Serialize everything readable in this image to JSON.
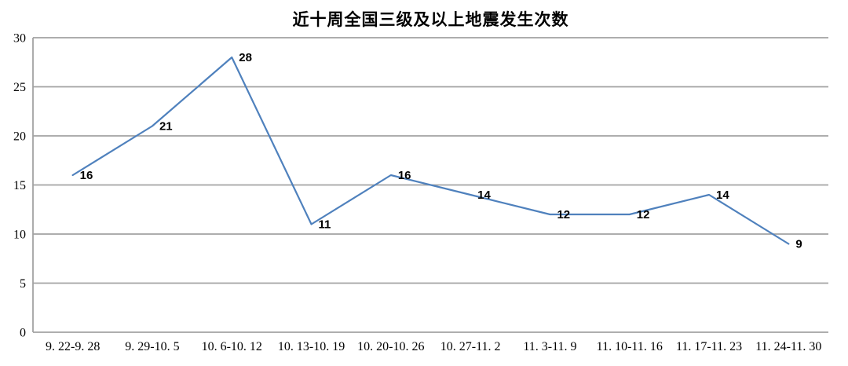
{
  "chart_data": {
    "type": "line",
    "title": "近十周全国三级及以上地震发生次数",
    "categories": [
      "9. 22-9. 28",
      "9. 29-10. 5",
      "10. 6-10. 12",
      "10. 13-10. 19",
      "10. 20-10. 26",
      "10. 27-11. 2",
      "11. 3-11. 9",
      "11. 10-11. 16",
      "11. 17-11. 23",
      "11. 24-11. 30"
    ],
    "values": [
      16,
      21,
      28,
      11,
      16,
      14,
      12,
      12,
      14,
      9
    ],
    "xlabel": "",
    "ylabel": "",
    "ylim": [
      0,
      30
    ],
    "yticks": [
      0,
      5,
      10,
      15,
      20,
      25,
      30
    ],
    "grid": true,
    "legend": "none",
    "data_labels_shown": true,
    "colors": {
      "line": "#4F81BD",
      "grid": "#A3A3A3",
      "axis": "#A3A3A3",
      "text": "#000000",
      "background": "#FFFFFF"
    }
  }
}
